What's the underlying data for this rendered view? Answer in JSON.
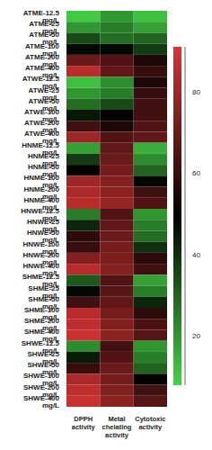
{
  "chart_data": {
    "type": "heatmap",
    "categories": [
      "DPPH activity",
      "Metal chelating activity",
      "Cytotoxic activity"
    ],
    "rows": [
      "ATME-12.5 mg/L",
      "ATME-25 mg/L",
      "ATME-50 mg/L",
      "ATME-100 mg/L",
      "ATME-200 mg/L",
      "ATME-400 mg/L",
      "ATWE-12.5 mg/L",
      "ATWE-25 mg/L",
      "ATWE-50 mg/L",
      "ATWE-100 mg/L",
      "ATWE-200 mg/L",
      "ATWE-400 mg/L",
      "HNME-12.5 mg/L",
      "HNME-25 mg/L",
      "HNME-50 mg/L",
      "HNME-100 mg/L",
      "HNME-200 mg/L",
      "HNME-400 mg/L",
      "HNWE-12.5 mg/L",
      "HNWE-25 mg/L",
      "HNWE-50 mg/L",
      "HNWE-100 mg/L",
      "HNWE-200 mg/L",
      "HNWE-400 mg/L",
      "SHME-12.5 mg/L",
      "SHME-25 mg/L",
      "SHME-50 mg/L",
      "SHME-100 mg/L",
      "SHME-200 mg/L",
      "SHME-400 mg/L",
      "SHWE-12.5 mg/L",
      "SHWE-25 mg/L",
      "SHWE-50 mg/L",
      "SHWE-100 mg/L",
      "SHWE-200 mg/L",
      "SHWE-400 mg/L"
    ],
    "cells": [
      [
        10,
        20,
        12
      ],
      [
        20,
        25,
        18
      ],
      [
        35,
        28,
        30
      ],
      [
        48,
        48,
        38
      ],
      [
        70,
        65,
        55
      ],
      [
        85,
        68,
        60
      ],
      [
        12,
        22,
        55
      ],
      [
        20,
        25,
        60
      ],
      [
        28,
        35,
        62
      ],
      [
        45,
        50,
        62
      ],
      [
        62,
        55,
        65
      ],
      [
        80,
        65,
        68
      ],
      [
        18,
        68,
        15
      ],
      [
        38,
        70,
        22
      ],
      [
        50,
        72,
        30
      ],
      [
        80,
        75,
        48
      ],
      [
        82,
        76,
        62
      ],
      [
        85,
        78,
        65
      ],
      [
        25,
        65,
        20
      ],
      [
        42,
        68,
        25
      ],
      [
        58,
        70,
        28
      ],
      [
        60,
        72,
        40
      ],
      [
        75,
        73,
        58
      ],
      [
        85,
        75,
        62
      ],
      [
        32,
        65,
        18
      ],
      [
        48,
        66,
        25
      ],
      [
        62,
        68,
        42
      ],
      [
        85,
        72,
        58
      ],
      [
        86,
        74,
        64
      ],
      [
        88,
        76,
        66
      ],
      [
        22,
        62,
        20
      ],
      [
        44,
        65,
        25
      ],
      [
        60,
        70,
        30
      ],
      [
        82,
        72,
        50
      ],
      [
        86,
        74,
        62
      ],
      [
        88,
        76,
        66
      ]
    ],
    "colorbar": {
      "range": [
        8,
        91
      ],
      "ticks": [
        20,
        40,
        60,
        80
      ],
      "colors": [
        "#44d444",
        "#000000",
        "#d93434"
      ]
    }
  }
}
